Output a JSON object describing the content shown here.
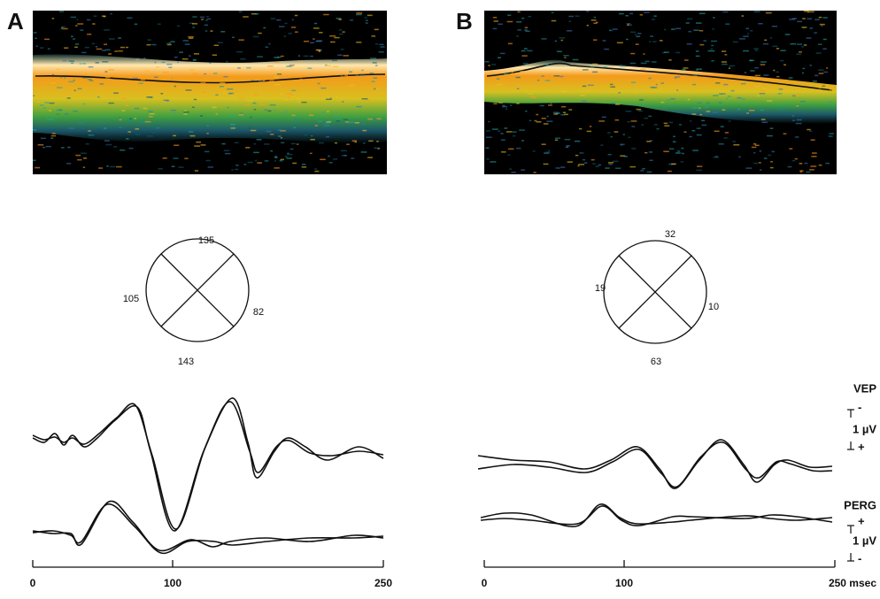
{
  "panels": [
    {
      "label": "A",
      "quadrants": {
        "top": "135",
        "left": "105",
        "right": "82",
        "bottom": "143"
      },
      "axis_ticks": [
        "0",
        "100",
        "250"
      ]
    },
    {
      "label": "B",
      "quadrants": {
        "top": "32",
        "left": "19",
        "right": "10",
        "bottom": "63"
      },
      "axis_ticks": [
        "0",
        "100",
        "250 msec"
      ]
    }
  ],
  "legend": {
    "vep": {
      "title": "VEP",
      "top_sign": "-",
      "unit": "1 µV",
      "bottom_sign": "+"
    },
    "perg": {
      "title": "PERG",
      "top_sign": "+",
      "unit": "1 µV",
      "bottom_sign": "-"
    }
  }
}
